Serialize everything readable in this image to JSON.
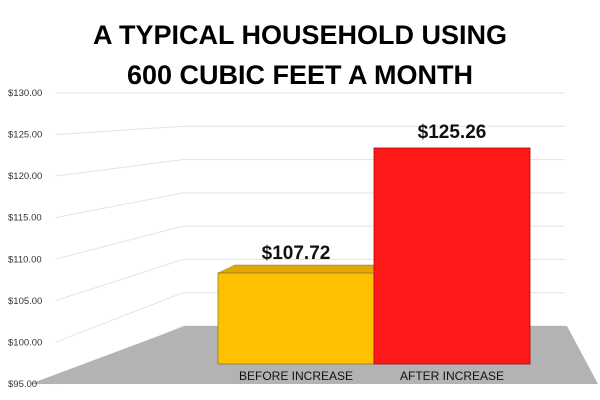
{
  "title_lines": [
    "A TYPICAL HOUSEHOLD USING",
    "600 CUBIC FEET A MONTH"
  ],
  "chart_data": {
    "type": "bar",
    "categories": [
      "BEFORE INCREASE",
      "AFTER INCREASE"
    ],
    "values": [
      107.72,
      125.26
    ],
    "data_labels": [
      "$107.72",
      "$125.26"
    ],
    "colors": [
      "#FFC000",
      "#FF1A1A"
    ],
    "ylim": [
      95,
      130
    ],
    "yticks": [
      95,
      100,
      105,
      110,
      115,
      120,
      125,
      130
    ],
    "ytick_labels": [
      "$95.00",
      "$100.00",
      "$105.00",
      "$110.00",
      "$115.00",
      "$120.00",
      "$125.00",
      "$130.00"
    ],
    "grid": true,
    "three_d": true
  }
}
